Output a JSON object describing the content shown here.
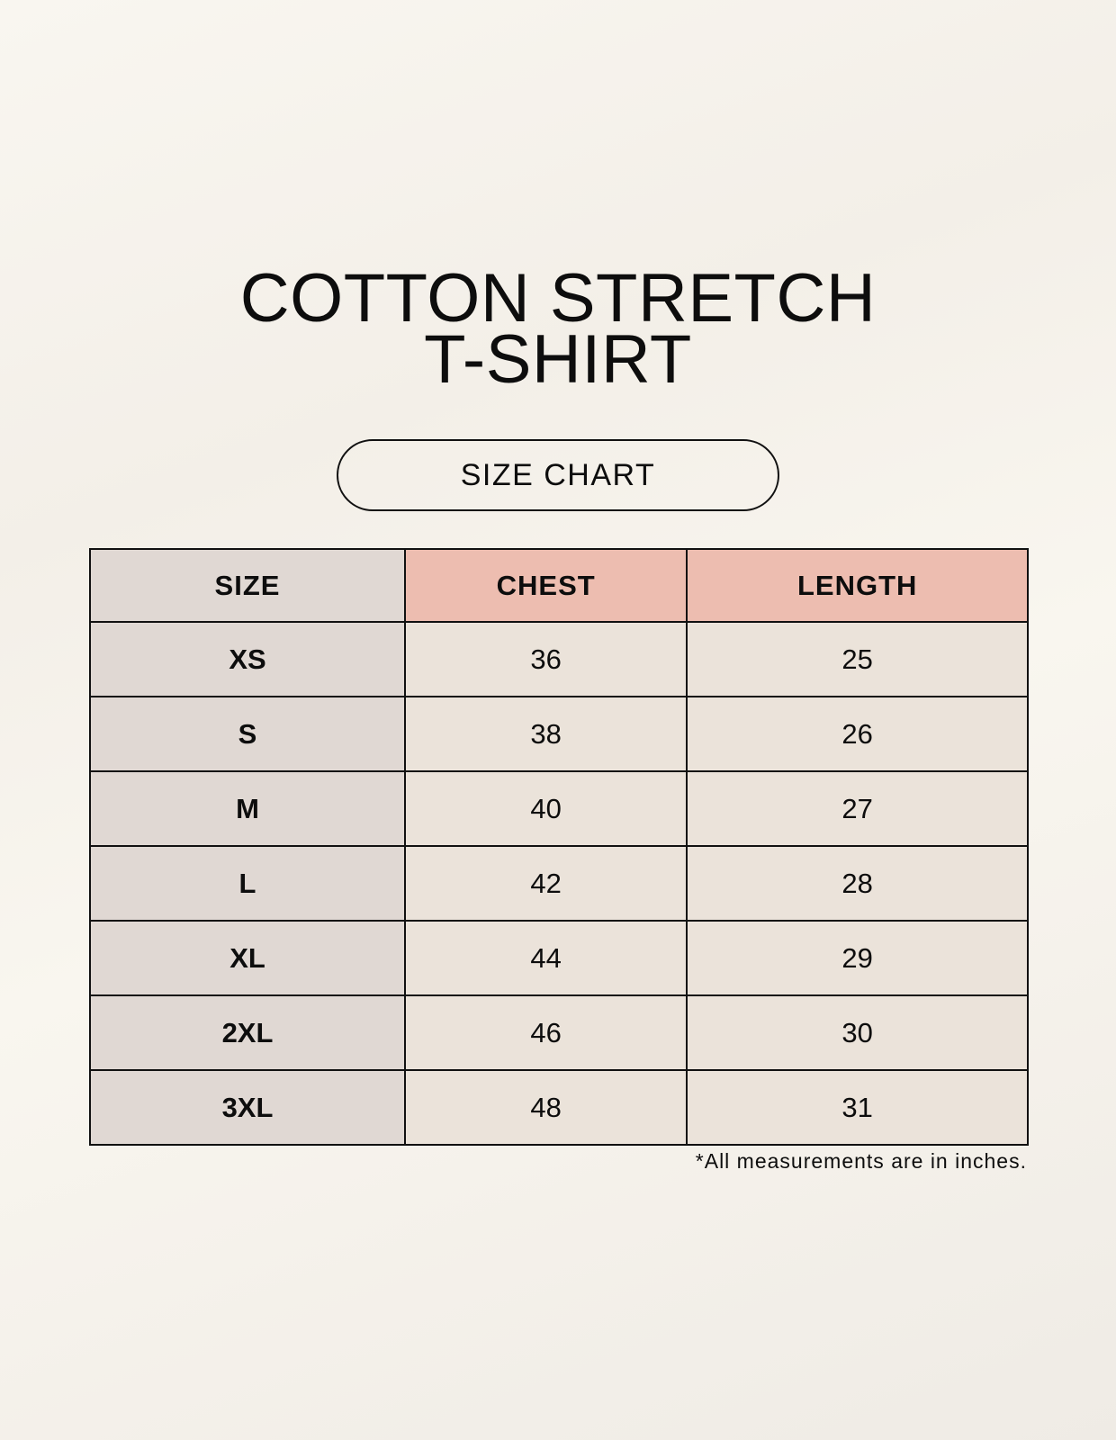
{
  "title": {
    "line1": "COTTON STRETCH",
    "line2": "T-SHIRT"
  },
  "badge": "SIZE CHART",
  "table": {
    "headers": [
      "SIZE",
      "CHEST",
      "LENGTH"
    ],
    "rows": [
      [
        "XS",
        "36",
        "25"
      ],
      [
        "S",
        "38",
        "26"
      ],
      [
        "M",
        "40",
        "27"
      ],
      [
        "L",
        "42",
        "28"
      ],
      [
        "XL",
        "44",
        "29"
      ],
      [
        "2XL",
        "46",
        "30"
      ],
      [
        "3XL",
        "48",
        "31"
      ]
    ]
  },
  "note": "*All measurements are in inches.",
  "colors": {
    "size_column": "#e0d8d3",
    "header_accent": "#edbdb0",
    "cell": "#ebe3da"
  }
}
